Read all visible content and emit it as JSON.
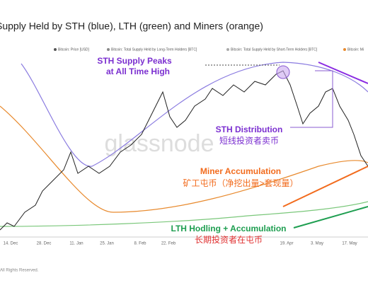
{
  "header": {
    "title": "Supply Held by STH (blue), LTH (green) and Miners (orange)"
  },
  "legend": [
    "Bitcoin: Price [USD]",
    "Bitcoin: Total Supply Held by Long-Term Holders [BTC]",
    "Bitcoin: Total Supply Held by Short-Term Holders [BTC]",
    "Bitcoin: Mi"
  ],
  "annotations": {
    "sth_peak": [
      "STH Supply Peaks",
      "at All Time High"
    ],
    "sth_distribution": [
      "STH Distribution",
      "短线投资者卖币"
    ],
    "miner": [
      "Miner Accumulation",
      "矿工屯币（净挖出量>套现量）"
    ],
    "lth": [
      "LTH Hodling + Accumulation",
      "长期投资者在屯币"
    ]
  },
  "x_labels": [
    "14. Dec",
    "28. Dec",
    "11. Jan",
    "25. Jan",
    "8. Feb",
    "22. Feb",
    "19. Apr",
    "3. May",
    "17. May"
  ],
  "watermark": "glassnode",
  "footer": "All Rights Reserved."
}
